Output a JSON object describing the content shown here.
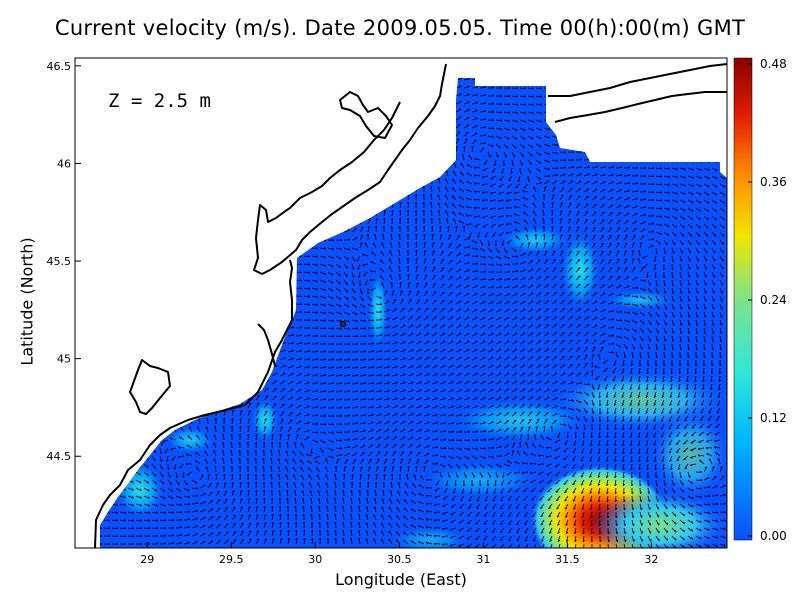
{
  "title": "Current velocity (m/s). Date 2009.05.05. Time 00(h):00(m) GMT",
  "depth_label": "Z = 2.5 m",
  "x_axis": {
    "label": "Longitude (East)",
    "ticks": [
      29,
      29.5,
      30,
      30.5,
      31,
      31.5,
      32
    ],
    "tick_labels": [
      "29",
      "29.5",
      "30",
      "30.5",
      "31",
      "31.5",
      "32"
    ],
    "range": [
      28.57,
      32.45
    ]
  },
  "y_axis": {
    "label": "Latitude (North)",
    "ticks": [
      44.5,
      45,
      45.5,
      46,
      46.5
    ],
    "tick_labels": [
      "44.5",
      "45",
      "45.5",
      "46",
      "46.5"
    ],
    "range": [
      44.03,
      46.54
    ]
  },
  "colorbar": {
    "ticks": [
      0.0,
      0.12,
      0.24,
      0.36,
      0.48
    ],
    "tick_labels": [
      "0.00",
      "0.12",
      "0.24",
      "0.36",
      "0.48"
    ],
    "colors": [
      "#0a50ff",
      "#00b4ff",
      "#30e8d8",
      "#7de38a",
      "#f0e600",
      "#ff8a00",
      "#e21e00",
      "#8a0000"
    ]
  },
  "colors": {
    "ocean_base": "#0a50ff",
    "land": "#ffffff",
    "coastline": "#000000",
    "arrows": "#000000"
  }
}
